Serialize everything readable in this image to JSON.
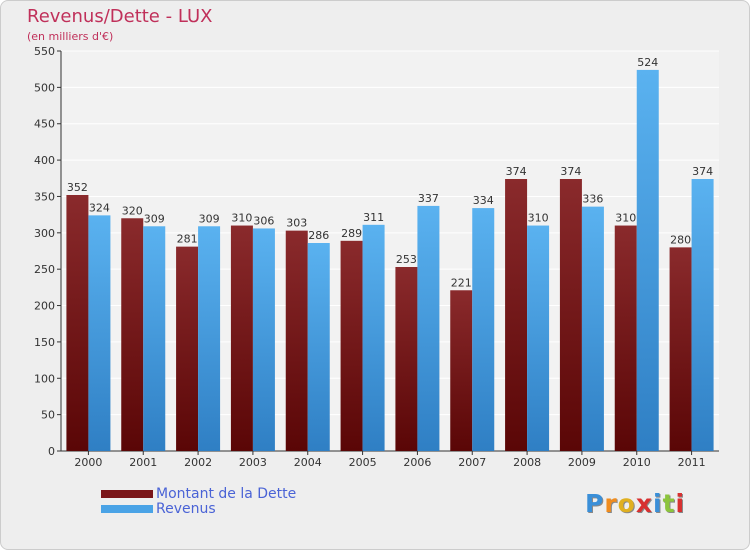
{
  "header": {
    "title": "Revenus/Dette - LUX",
    "subtitle": "(en milliers d'€)"
  },
  "chart_data": {
    "type": "bar",
    "categories": [
      "2000",
      "2001",
      "2002",
      "2003",
      "2004",
      "2005",
      "2006",
      "2007",
      "2008",
      "2009",
      "2010",
      "2011"
    ],
    "series": [
      {
        "name": "Montant de la Dette",
        "values": [
          352,
          320,
          281,
          310,
          303,
          289,
          253,
          221,
          374,
          374,
          310,
          280
        ],
        "color": "#7a1518"
      },
      {
        "name": "Revenus",
        "values": [
          324,
          309,
          309,
          306,
          286,
          311,
          337,
          334,
          310,
          336,
          524,
          374
        ],
        "color": "#4aa3e6"
      }
    ],
    "ylim": [
      0,
      550
    ],
    "yticks": [
      0,
      50,
      100,
      150,
      200,
      250,
      300,
      350,
      400,
      450,
      500,
      550
    ],
    "grid": true,
    "legend": "bottom-left"
  },
  "legend": {
    "items": [
      {
        "label": "Montant de la Dette",
        "color": "#7a1518"
      },
      {
        "label": "Revenus",
        "color": "#4aa3e6"
      }
    ]
  },
  "logo": {
    "letters": [
      "P",
      "r",
      "o",
      "x",
      "i",
      "t",
      "i"
    ],
    "colors": [
      "#3a8fd8",
      "#f08c1e",
      "#e0b020",
      "#d83030",
      "#3a8fd8",
      "#8cc43c",
      "#d83030"
    ]
  }
}
